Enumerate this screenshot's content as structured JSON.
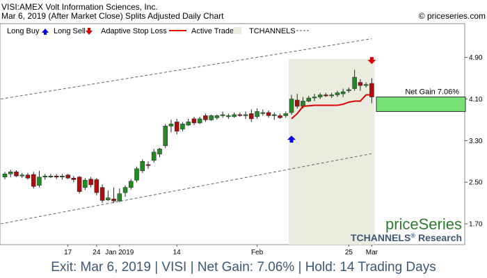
{
  "header": {
    "title": "VISI:AMEX Volt Information Sciences, Inc.",
    "subtitle": "Mar 6, 2019 (After Market Close)  Splits Adjusted Daily Chart",
    "copyright": "© priceseries.com"
  },
  "legend": {
    "long_buy": "Long Buy",
    "long_sell": "Long Sell",
    "adaptive_stop": "Adaptive Stop Loss",
    "active_trade": "Active Trade",
    "tchannels": "TCHANNELS"
  },
  "brand": {
    "name": "priceSeries",
    "research_prefix": "TCHANNELS",
    "reg": "®",
    "research_suffix": "Research"
  },
  "annotation": {
    "net_gain": "Net Gain 7.06%"
  },
  "footer": {
    "text": "Exit: Mar 6, 2019 | VISI | Net Gain: 7.06% | Hold: 14 Trading Days"
  },
  "colors": {
    "up": "#228b22",
    "down": "#aa1010",
    "stop": "#e00000",
    "trade_bg": "#e9ecdf",
    "gain_box": "#77e077",
    "buy": "#0000ee",
    "sell": "#dd0000",
    "footer": "#3b5876"
  },
  "chart_data": {
    "type": "candlestick",
    "y_ticks": [
      1.7,
      2.5,
      3.3,
      4.1,
      4.9
    ],
    "y_tick_labels": [
      "1.70",
      "2.50",
      "3.30",
      "4.10",
      "4.90"
    ],
    "ylim": [
      1.3,
      5.55
    ],
    "x_tick_labels": [
      {
        "i": 11,
        "label": "17"
      },
      {
        "i": 16,
        "label": "24"
      },
      {
        "i": 20,
        "label": "Jan 2019"
      },
      {
        "i": 30,
        "label": "14"
      },
      {
        "i": 44,
        "label": "Feb"
      },
      {
        "i": 60,
        "label": "25"
      },
      {
        "i": 64,
        "label": "Mar"
      }
    ],
    "n_slots": 84,
    "candles": [
      [
        2.6,
        2.7,
        2.56,
        2.66
      ],
      [
        2.66,
        2.74,
        2.6,
        2.7
      ],
      [
        2.7,
        2.73,
        2.6,
        2.62
      ],
      [
        2.62,
        2.68,
        2.58,
        2.64
      ],
      [
        2.64,
        2.68,
        2.55,
        2.58
      ],
      [
        2.65,
        2.7,
        2.38,
        2.42
      ],
      [
        2.44,
        2.72,
        2.4,
        2.6
      ],
      [
        2.6,
        2.66,
        2.55,
        2.62
      ],
      [
        2.62,
        2.66,
        2.58,
        2.62
      ],
      [
        2.62,
        2.66,
        2.56,
        2.6
      ],
      [
        2.6,
        2.66,
        2.55,
        2.62
      ],
      [
        2.64,
        2.66,
        2.56,
        2.58
      ],
      [
        2.58,
        2.62,
        2.5,
        2.55
      ],
      [
        2.6,
        2.62,
        2.28,
        2.32
      ],
      [
        2.4,
        2.58,
        2.35,
        2.54
      ],
      [
        2.56,
        2.6,
        2.4,
        2.45
      ],
      [
        2.55,
        2.58,
        2.25,
        2.3
      ],
      [
        2.4,
        2.46,
        2.1,
        2.15
      ],
      [
        2.16,
        2.34,
        2.14,
        2.2
      ],
      [
        2.18,
        2.4,
        2.1,
        2.14
      ],
      [
        2.14,
        2.38,
        2.12,
        2.28
      ],
      [
        2.3,
        2.44,
        2.22,
        2.4
      ],
      [
        2.4,
        2.56,
        2.36,
        2.52
      ],
      [
        2.54,
        2.8,
        2.5,
        2.76
      ],
      [
        2.72,
        2.94,
        2.68,
        2.9
      ],
      [
        2.84,
        2.9,
        2.76,
        2.82
      ],
      [
        2.92,
        3.14,
        2.88,
        3.08
      ],
      [
        3.04,
        3.16,
        2.98,
        3.14
      ],
      [
        3.2,
        3.62,
        3.16,
        3.58
      ],
      [
        3.58,
        3.7,
        3.46,
        3.62
      ],
      [
        3.66,
        3.72,
        3.42,
        3.48
      ],
      [
        3.52,
        3.66,
        3.48,
        3.62
      ],
      [
        3.6,
        3.72,
        3.58,
        3.66
      ],
      [
        3.72,
        3.76,
        3.6,
        3.64
      ],
      [
        3.64,
        3.76,
        3.62,
        3.72
      ],
      [
        3.78,
        3.82,
        3.66,
        3.7
      ],
      [
        3.7,
        3.8,
        3.68,
        3.78
      ],
      [
        3.74,
        3.8,
        3.7,
        3.78
      ],
      [
        3.78,
        3.86,
        3.74,
        3.8
      ],
      [
        3.78,
        3.82,
        3.72,
        3.78
      ],
      [
        3.76,
        3.84,
        3.74,
        3.8
      ],
      [
        3.8,
        3.84,
        3.76,
        3.78
      ],
      [
        3.78,
        3.86,
        3.72,
        3.8
      ],
      [
        3.82,
        3.9,
        3.66,
        3.72
      ],
      [
        3.76,
        3.92,
        3.72,
        3.86
      ],
      [
        3.82,
        3.9,
        3.78,
        3.84
      ],
      [
        3.84,
        3.88,
        3.74,
        3.78
      ],
      [
        3.78,
        3.84,
        3.7,
        3.8
      ],
      [
        3.78,
        3.82,
        3.72,
        3.74
      ],
      [
        3.78,
        3.86,
        3.74,
        3.82
      ],
      [
        3.84,
        4.18,
        3.8,
        4.1
      ],
      [
        4.08,
        4.2,
        3.92,
        3.96
      ],
      [
        3.96,
        4.14,
        3.92,
        4.06
      ],
      [
        4.06,
        4.16,
        4.04,
        4.12
      ],
      [
        4.12,
        4.2,
        4.06,
        4.14
      ],
      [
        4.14,
        4.22,
        4.1,
        4.18
      ],
      [
        4.18,
        4.22,
        4.14,
        4.16
      ],
      [
        4.16,
        4.22,
        4.12,
        4.18
      ],
      [
        4.18,
        4.26,
        4.14,
        4.22
      ],
      [
        4.2,
        4.3,
        4.14,
        4.24
      ],
      [
        4.26,
        4.32,
        4.22,
        4.28
      ],
      [
        4.3,
        4.66,
        4.26,
        4.52
      ],
      [
        4.42,
        4.48,
        4.26,
        4.36
      ],
      [
        4.36,
        4.42,
        4.32,
        4.38
      ],
      [
        4.4,
        4.5,
        4.02,
        4.14
      ]
    ],
    "trade_zone": {
      "start": 50,
      "end": 64
    },
    "stop_line": [
      [
        50,
        3.72
      ],
      [
        51,
        3.82
      ],
      [
        52,
        3.96
      ],
      [
        53,
        3.97
      ],
      [
        54,
        3.98
      ],
      [
        55,
        3.98
      ],
      [
        56,
        3.98
      ],
      [
        57,
        3.98
      ],
      [
        58,
        3.98
      ],
      [
        59,
        4.0
      ],
      [
        60,
        4.04
      ],
      [
        61,
        4.06
      ],
      [
        62,
        4.06
      ],
      [
        63,
        4.18
      ],
      [
        64,
        4.18
      ]
    ],
    "buy_marker": {
      "i": 50,
      "price": 3.33
    },
    "sell_marker": {
      "i": 64,
      "price": 4.84
    },
    "gain_box": {
      "from": 3.86,
      "to": 4.14
    },
    "channel_upper": [
      [
        0,
        4.1
      ],
      [
        64,
        5.26
      ]
    ],
    "channel_lower": [
      [
        0,
        1.7
      ],
      [
        64,
        3.05
      ]
    ]
  }
}
